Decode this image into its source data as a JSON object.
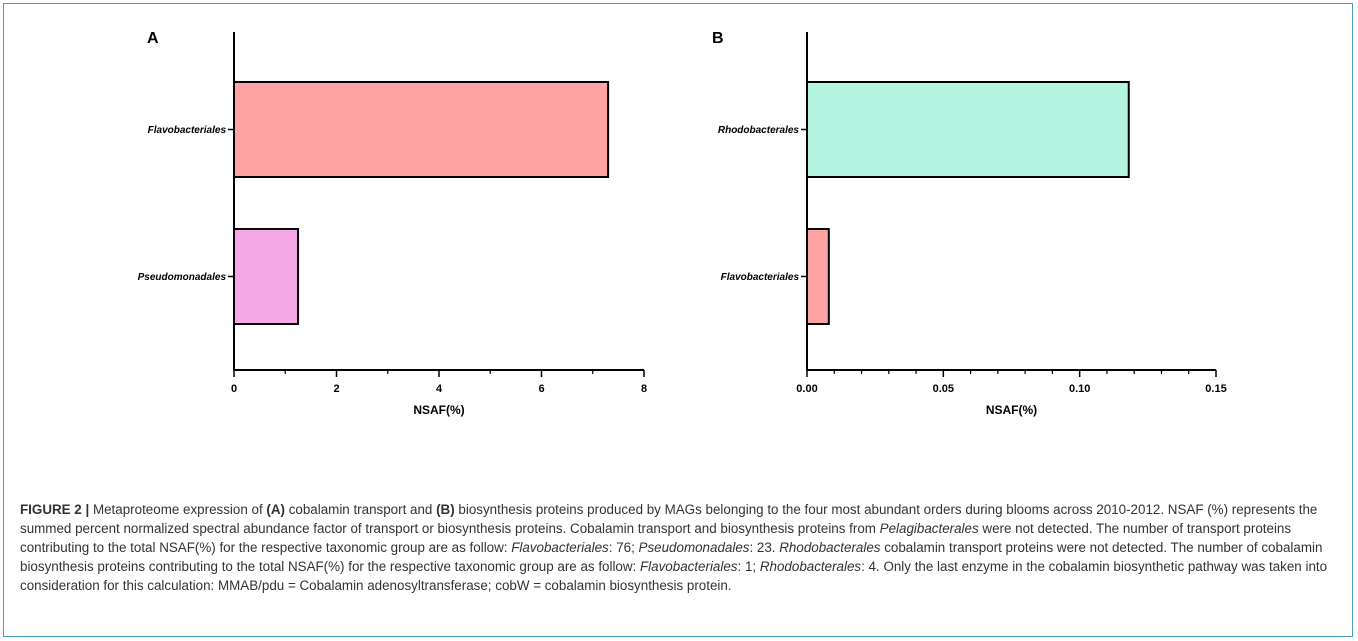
{
  "chart_data": [
    {
      "type": "bar",
      "orientation": "horizontal",
      "panel_label": "A",
      "categories": [
        "Flavobacteriales",
        "Pseudomonadales"
      ],
      "values": [
        7.3,
        1.25
      ],
      "colors": [
        "#fda3a3",
        "#f4a9e6"
      ],
      "xlabel": "NSAF(%)",
      "xlim": [
        0,
        8
      ],
      "xticks": [
        "0",
        "2",
        "4",
        "6",
        "8"
      ],
      "grid": false
    },
    {
      "type": "bar",
      "orientation": "horizontal",
      "panel_label": "B",
      "categories": [
        "Rhodobacterales",
        "Flavobacteriales"
      ],
      "values": [
        0.118,
        0.008
      ],
      "colors": [
        "#b3f5e0",
        "#fda3a3"
      ],
      "xlabel": "NSAF(%)",
      "xlim": [
        0,
        0.15
      ],
      "xticks": [
        "0.00",
        "0.05",
        "0.10",
        "0.15"
      ],
      "grid": false
    }
  ],
  "caption": {
    "label": "FIGURE 2 |",
    "t1": " Metaproteome expression of ",
    "a": "(A)",
    "t2": " cobalamin transport and ",
    "b": "(B)",
    "t3": " biosynthesis proteins produced by MAGs belonging to the four most abundant orders during blooms across 2010-2012. NSAF (%) represents the summed percent normalized spectral abundance factor of transport or biosynthesis proteins. Cobalamin transport and biosynthesis proteins from ",
    "i1": "Pelagibacterales",
    "t4": " were not detected. The number of transport proteins contributing to the total NSAF(%) for the respective taxonomic group are as follow: ",
    "i2": "Flavobacteriales",
    "t5": ": 76; ",
    "i3": "Pseudomonadales",
    "t6": ": 23. ",
    "i4": "Rhodobacterales",
    "t7": " cobalamin transport proteins were not detected. The number of cobalamin biosynthesis proteins contributing to the total NSAF(%) for the respective taxonomic group are as follow: ",
    "i5": "Flavobacteriales",
    "t8": ": 1; ",
    "i6": "Rhodobacterales",
    "t9": ": 4. Only the last enzyme in the cobalamin biosynthetic pathway was taken into consideration for this calculation: MMAB/pdu = Cobalamin adenosyltransferase; cobW = cobalamin biosynthesis protein."
  }
}
